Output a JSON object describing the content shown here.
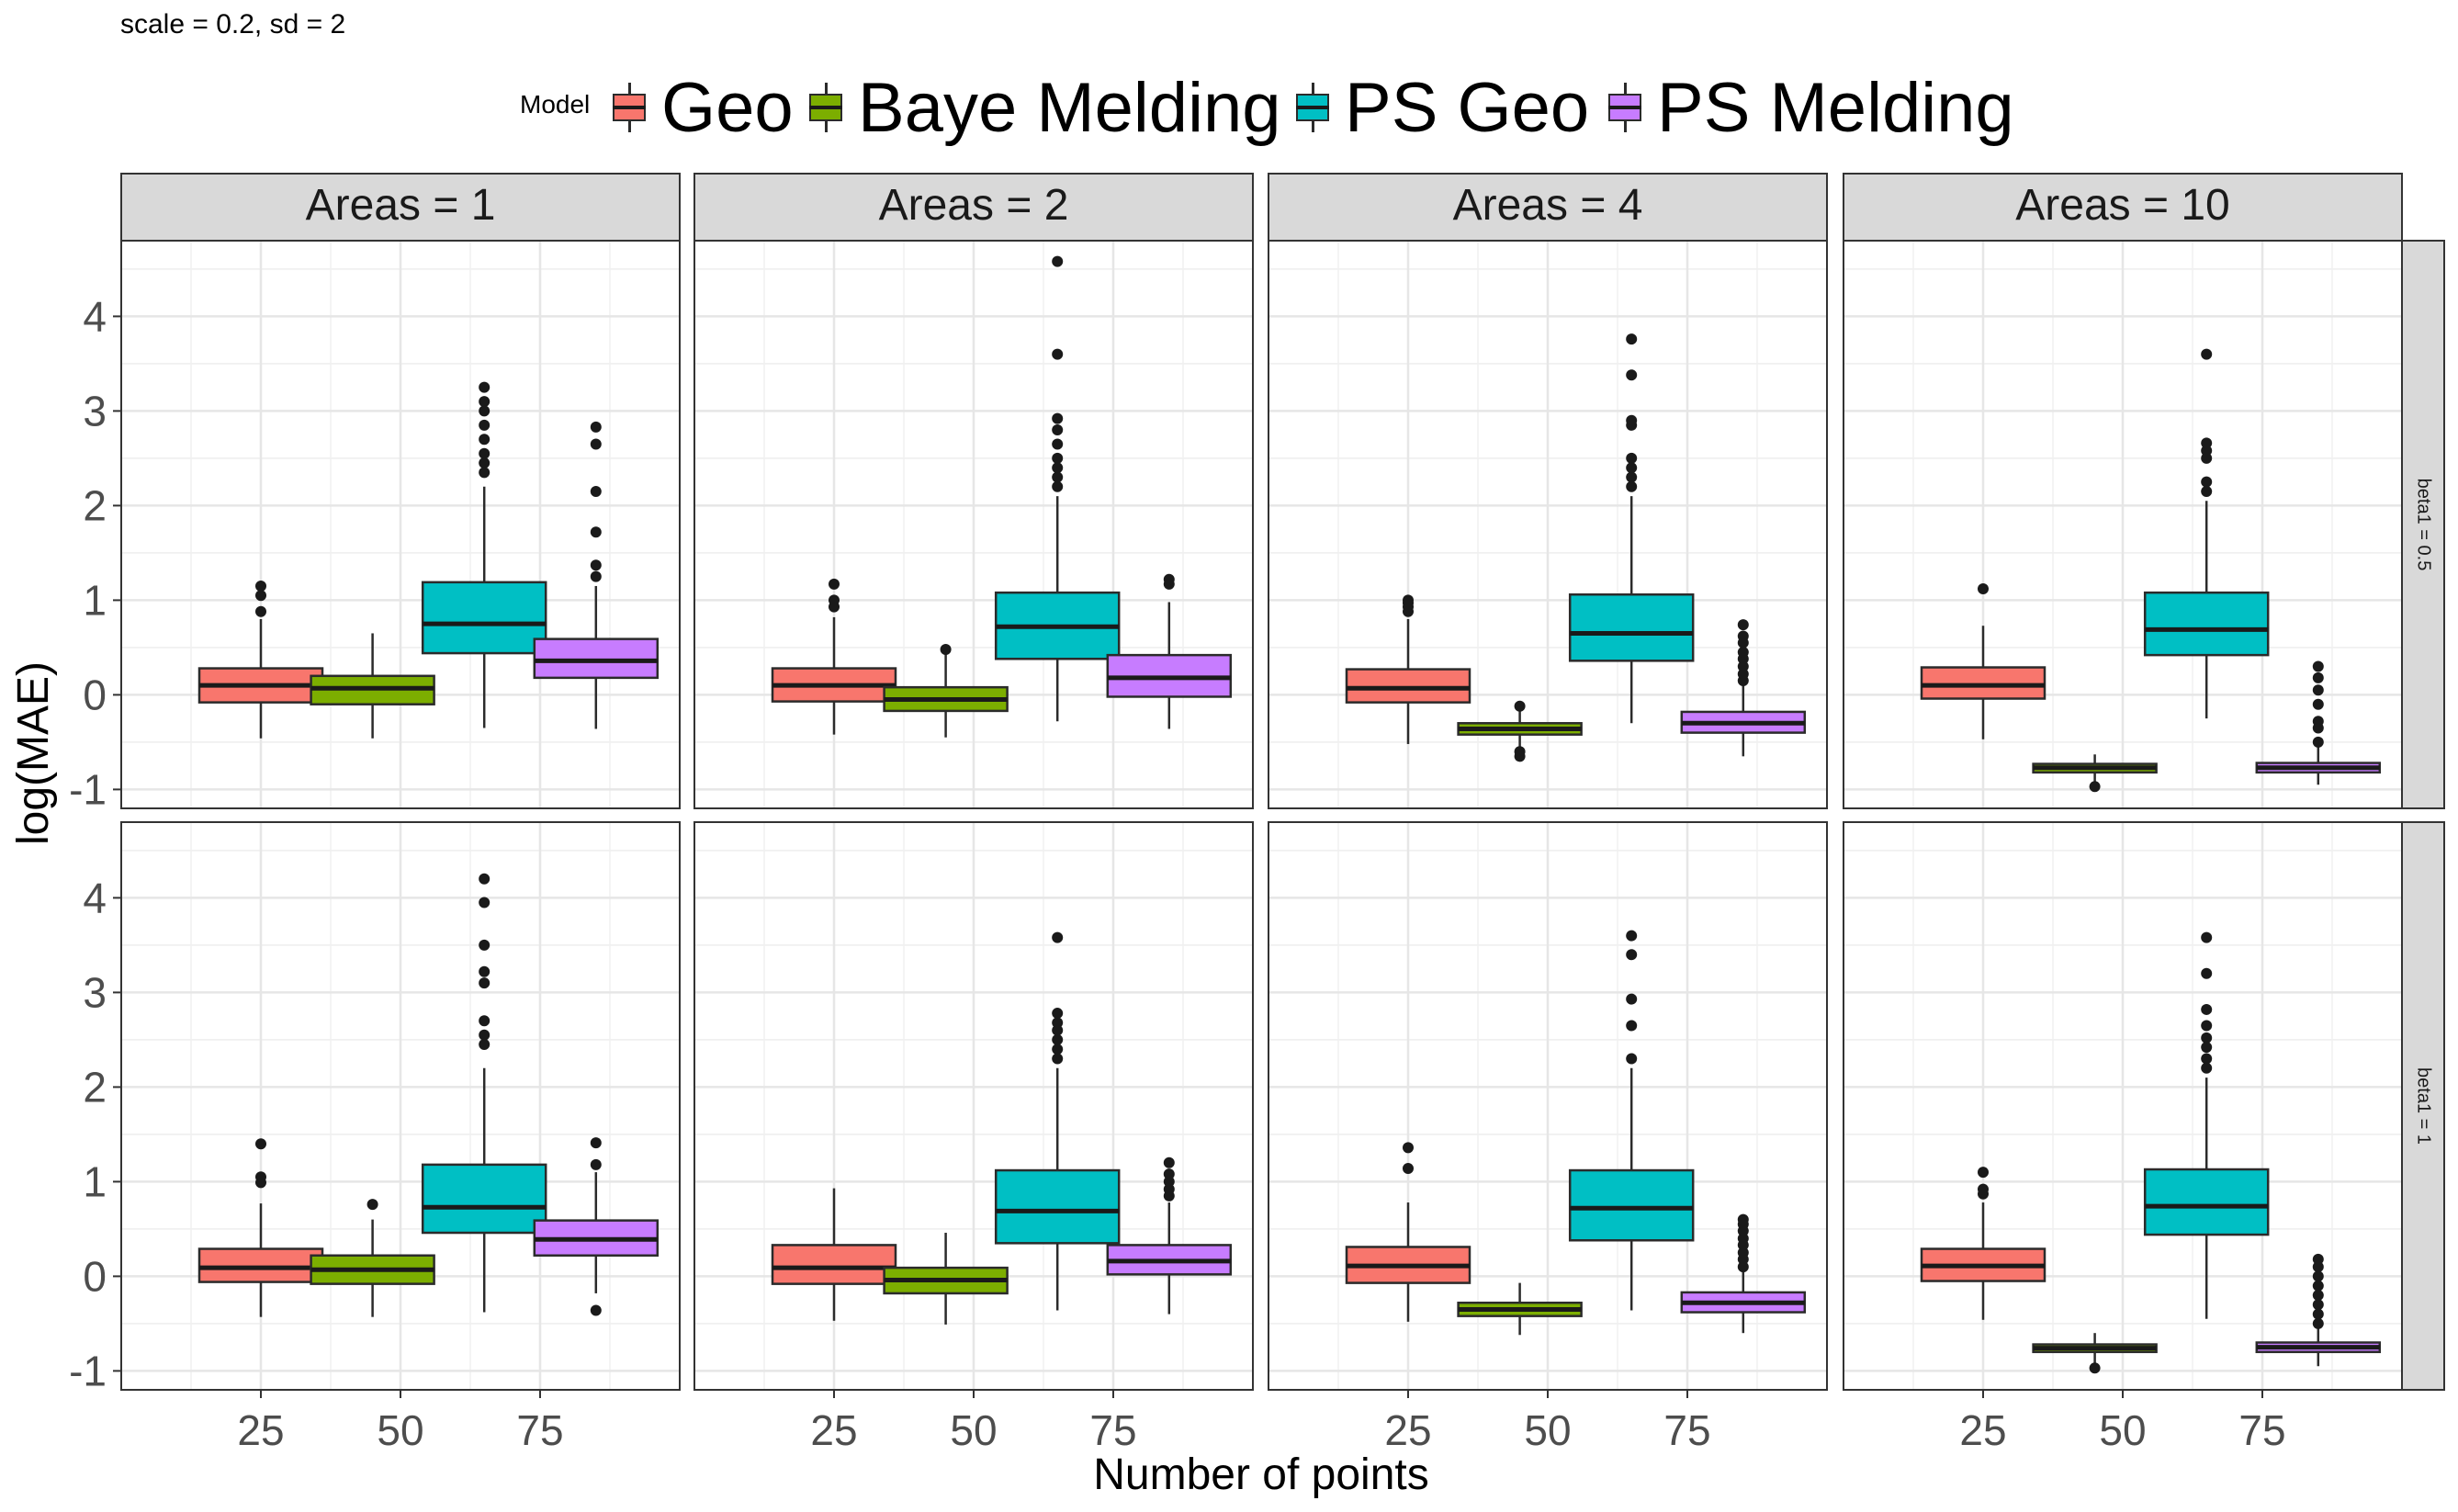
{
  "subtitle": "scale = 0.2, sd  = 2",
  "legend": {
    "title": "Model",
    "items": [
      {
        "name": "Geo",
        "color": "#F8766D"
      },
      {
        "name": "Baye Melding",
        "color": "#7CAE00"
      },
      {
        "name": "PS Geo",
        "color": "#00BFC4"
      },
      {
        "name": "PS Melding",
        "color": "#C77CFF"
      }
    ]
  },
  "chart_data": {
    "type": "boxplot",
    "xlabel": "Number of points",
    "ylabel": "log(MAE)",
    "x_ticks": [
      "25",
      "50",
      "75"
    ],
    "x_range": [
      0,
      100
    ],
    "ylim": [
      -1.2,
      4.8
    ],
    "y_ticks": [
      -1,
      0,
      1,
      2,
      3,
      4
    ],
    "grid": true,
    "legend_position": "top",
    "facet_columns": [
      "Areas = 1",
      "Areas = 2",
      "Areas = 4",
      "Areas = 10"
    ],
    "facet_rows": [
      "beta1 = 0.5",
      "beta1 = 1"
    ],
    "box_positions": {
      "Geo": 25,
      "Baye Melding": 45,
      "PS Geo": 65,
      "PS Melding": 85
    },
    "panels": [
      {
        "row": 0,
        "col": 0,
        "boxes": [
          {
            "model": "Geo",
            "q1": -0.08,
            "median": 0.1,
            "q3": 0.28,
            "lower": -0.46,
            "upper": 0.8,
            "outliers": [
              0.88,
              1.05,
              1.15
            ]
          },
          {
            "model": "Baye Melding",
            "q1": -0.1,
            "median": 0.07,
            "q3": 0.2,
            "lower": -0.46,
            "upper": 0.65,
            "outliers": []
          },
          {
            "model": "PS Geo",
            "q1": 0.44,
            "median": 0.75,
            "q3": 1.19,
            "lower": -0.35,
            "upper": 2.2,
            "outliers": [
              2.35,
              2.45,
              2.55,
              2.7,
              2.85,
              3.0,
              3.1,
              3.25
            ]
          },
          {
            "model": "PS Melding",
            "q1": 0.18,
            "median": 0.36,
            "q3": 0.59,
            "lower": -0.36,
            "upper": 1.15,
            "outliers": [
              1.25,
              1.37,
              1.72,
              2.15,
              2.65,
              2.83
            ]
          }
        ]
      },
      {
        "row": 0,
        "col": 1,
        "boxes": [
          {
            "model": "Geo",
            "q1": -0.07,
            "median": 0.1,
            "q3": 0.28,
            "lower": -0.42,
            "upper": 0.82,
            "outliers": [
              0.93,
              1.0,
              1.17
            ]
          },
          {
            "model": "Baye Melding",
            "q1": -0.17,
            "median": -0.05,
            "q3": 0.08,
            "lower": -0.45,
            "upper": 0.43,
            "outliers": [
              0.48
            ]
          },
          {
            "model": "PS Geo",
            "q1": 0.38,
            "median": 0.72,
            "q3": 1.08,
            "lower": -0.28,
            "upper": 2.1,
            "outliers": [
              2.2,
              2.3,
              2.4,
              2.5,
              2.65,
              2.8,
              2.92,
              3.6,
              4.58
            ]
          },
          {
            "model": "PS Melding",
            "q1": -0.02,
            "median": 0.18,
            "q3": 0.42,
            "lower": -0.36,
            "upper": 0.98,
            "outliers": [
              1.17,
              1.22
            ]
          }
        ]
      },
      {
        "row": 0,
        "col": 2,
        "boxes": [
          {
            "model": "Geo",
            "q1": -0.08,
            "median": 0.07,
            "q3": 0.27,
            "lower": -0.52,
            "upper": 0.8,
            "outliers": [
              0.88,
              0.93,
              0.97,
              1.0
            ]
          },
          {
            "model": "Baye Melding",
            "q1": -0.42,
            "median": -0.36,
            "q3": -0.3,
            "lower": -0.55,
            "upper": -0.15,
            "outliers": [
              -0.12,
              -0.6,
              -0.65
            ]
          },
          {
            "model": "PS Geo",
            "q1": 0.36,
            "median": 0.65,
            "q3": 1.06,
            "lower": -0.3,
            "upper": 2.1,
            "outliers": [
              2.2,
              2.3,
              2.4,
              2.5,
              2.85,
              2.9,
              3.38,
              3.76
            ]
          },
          {
            "model": "PS Melding",
            "q1": -0.4,
            "median": -0.3,
            "q3": -0.18,
            "lower": -0.65,
            "upper": 0.1,
            "outliers": [
              0.15,
              0.22,
              0.3,
              0.38,
              0.45,
              0.55,
              0.62,
              0.74
            ]
          }
        ]
      },
      {
        "row": 0,
        "col": 3,
        "boxes": [
          {
            "model": "Geo",
            "q1": -0.04,
            "median": 0.1,
            "q3": 0.29,
            "lower": -0.47,
            "upper": 0.73,
            "outliers": [
              1.12
            ]
          },
          {
            "model": "Baye Melding",
            "q1": -0.82,
            "median": -0.77,
            "q3": -0.73,
            "lower": -0.93,
            "upper": -0.63,
            "outliers": [
              -0.97
            ]
          },
          {
            "model": "PS Geo",
            "q1": 0.42,
            "median": 0.69,
            "q3": 1.08,
            "lower": -0.25,
            "upper": 2.05,
            "outliers": [
              2.15,
              2.25,
              2.5,
              2.58,
              2.66,
              3.6
            ]
          },
          {
            "model": "PS Melding",
            "q1": -0.82,
            "median": -0.77,
            "q3": -0.72,
            "lower": -0.95,
            "upper": -0.55,
            "outliers": [
              -0.5,
              -0.35,
              -0.28,
              -0.1,
              0.05,
              0.18,
              0.3
            ]
          }
        ]
      },
      {
        "row": 1,
        "col": 0,
        "boxes": [
          {
            "model": "Geo",
            "q1": -0.06,
            "median": 0.09,
            "q3": 0.29,
            "lower": -0.43,
            "upper": 0.77,
            "outliers": [
              0.99,
              1.05,
              1.4
            ]
          },
          {
            "model": "Baye Melding",
            "q1": -0.08,
            "median": 0.07,
            "q3": 0.22,
            "lower": -0.43,
            "upper": 0.6,
            "outliers": [
              0.76
            ]
          },
          {
            "model": "PS Geo",
            "q1": 0.46,
            "median": 0.73,
            "q3": 1.18,
            "lower": -0.38,
            "upper": 2.2,
            "outliers": [
              2.45,
              2.55,
              2.7,
              3.1,
              3.22,
              3.5,
              3.95,
              4.2
            ]
          },
          {
            "model": "PS Melding",
            "q1": 0.22,
            "median": 0.39,
            "q3": 0.59,
            "lower": -0.18,
            "upper": 1.1,
            "outliers": [
              -0.36,
              1.18,
              1.41
            ]
          }
        ]
      },
      {
        "row": 1,
        "col": 1,
        "boxes": [
          {
            "model": "Geo",
            "q1": -0.08,
            "median": 0.09,
            "q3": 0.33,
            "lower": -0.47,
            "upper": 0.93,
            "outliers": []
          },
          {
            "model": "Baye Melding",
            "q1": -0.18,
            "median": -0.04,
            "q3": 0.09,
            "lower": -0.51,
            "upper": 0.46,
            "outliers": []
          },
          {
            "model": "PS Geo",
            "q1": 0.35,
            "median": 0.69,
            "q3": 1.12,
            "lower": -0.36,
            "upper": 2.2,
            "outliers": [
              2.3,
              2.4,
              2.5,
              2.6,
              2.68,
              2.78,
              3.58
            ]
          },
          {
            "model": "PS Melding",
            "q1": 0.02,
            "median": 0.16,
            "q3": 0.33,
            "lower": -0.4,
            "upper": 0.78,
            "outliers": [
              0.85,
              0.92,
              1.0,
              1.08,
              1.2
            ]
          }
        ]
      },
      {
        "row": 1,
        "col": 2,
        "boxes": [
          {
            "model": "Geo",
            "q1": -0.07,
            "median": 0.11,
            "q3": 0.31,
            "lower": -0.48,
            "upper": 0.78,
            "outliers": [
              1.14,
              1.36
            ]
          },
          {
            "model": "Baye Melding",
            "q1": -0.42,
            "median": -0.35,
            "q3": -0.28,
            "lower": -0.62,
            "upper": -0.07,
            "outliers": []
          },
          {
            "model": "PS Geo",
            "q1": 0.38,
            "median": 0.72,
            "q3": 1.12,
            "lower": -0.36,
            "upper": 2.2,
            "outliers": [
              2.3,
              2.65,
              2.93,
              3.4,
              3.6
            ]
          },
          {
            "model": "PS Melding",
            "q1": -0.38,
            "median": -0.28,
            "q3": -0.17,
            "lower": -0.6,
            "upper": 0.05,
            "outliers": [
              0.1,
              0.18,
              0.25,
              0.33,
              0.4,
              0.48,
              0.55,
              0.6
            ]
          }
        ]
      },
      {
        "row": 1,
        "col": 3,
        "boxes": [
          {
            "model": "Geo",
            "q1": -0.05,
            "median": 0.11,
            "q3": 0.29,
            "lower": -0.46,
            "upper": 0.78,
            "outliers": [
              0.87,
              0.92,
              1.1
            ]
          },
          {
            "model": "Baye Melding",
            "q1": -0.8,
            "median": -0.76,
            "q3": -0.72,
            "lower": -0.93,
            "upper": -0.6,
            "outliers": [
              -0.97
            ]
          },
          {
            "model": "PS Geo",
            "q1": 0.44,
            "median": 0.74,
            "q3": 1.13,
            "lower": -0.45,
            "upper": 2.1,
            "outliers": [
              2.2,
              2.3,
              2.42,
              2.52,
              2.65,
              2.82,
              3.2,
              3.58
            ]
          },
          {
            "model": "PS Melding",
            "q1": -0.8,
            "median": -0.75,
            "q3": -0.7,
            "lower": -0.95,
            "upper": -0.55,
            "outliers": [
              -0.5,
              -0.4,
              -0.3,
              -0.2,
              -0.1,
              0.0,
              0.1,
              0.18
            ]
          }
        ]
      }
    ]
  }
}
